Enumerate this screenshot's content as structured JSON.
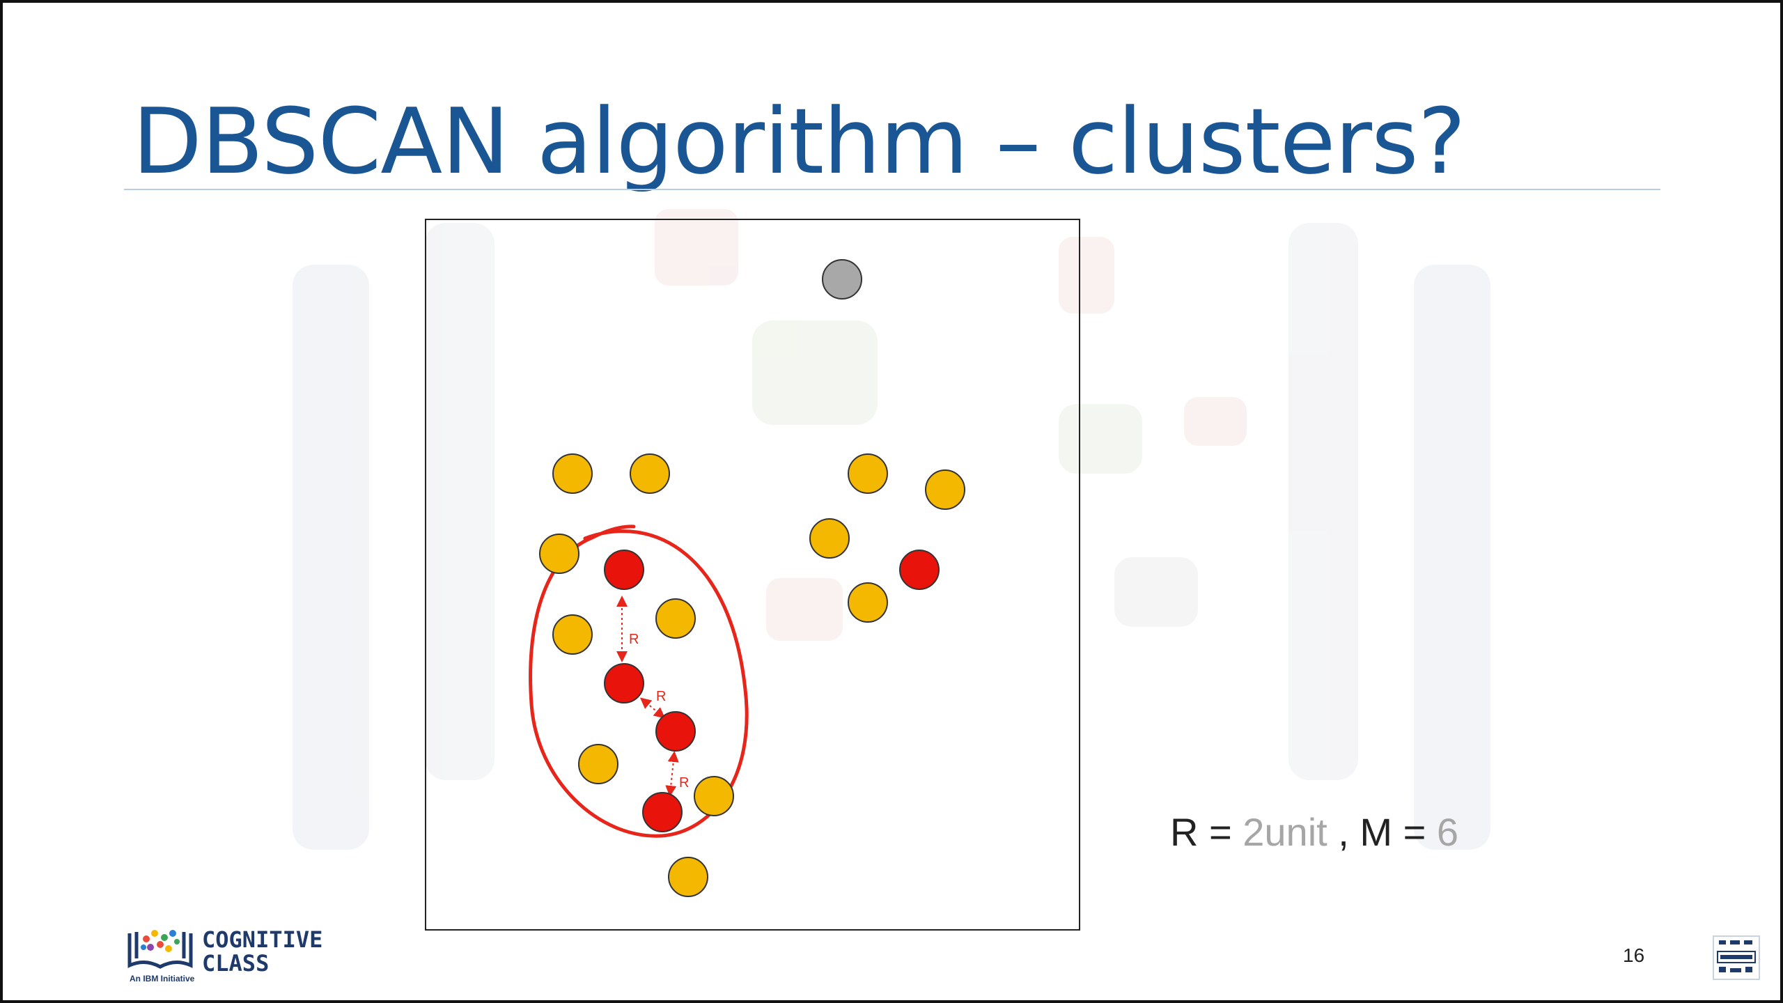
{
  "slide": {
    "title": "DBSCAN algorithm – clusters?",
    "page_number": "16"
  },
  "params": {
    "r_label": "R = ",
    "r_value": "2unit",
    "separator": " , ",
    "m_label": "M = ",
    "m_value": "6"
  },
  "diagram": {
    "distance_label": "R",
    "colors": {
      "border_point": "#f5b800",
      "core_point": "#e8130a",
      "noise_point": "#a8a8a8",
      "annotation": "#e8251a",
      "title": "#1a5693"
    },
    "point_types": [
      "border",
      "core",
      "noise"
    ]
  },
  "branding": {
    "name_line1": "COGNITIVE",
    "name_line2": "CLASS",
    "tagline": "An IBM Initiative",
    "logo_icon": "open-book-icon",
    "corner_icon": "learning-badge-icon"
  }
}
